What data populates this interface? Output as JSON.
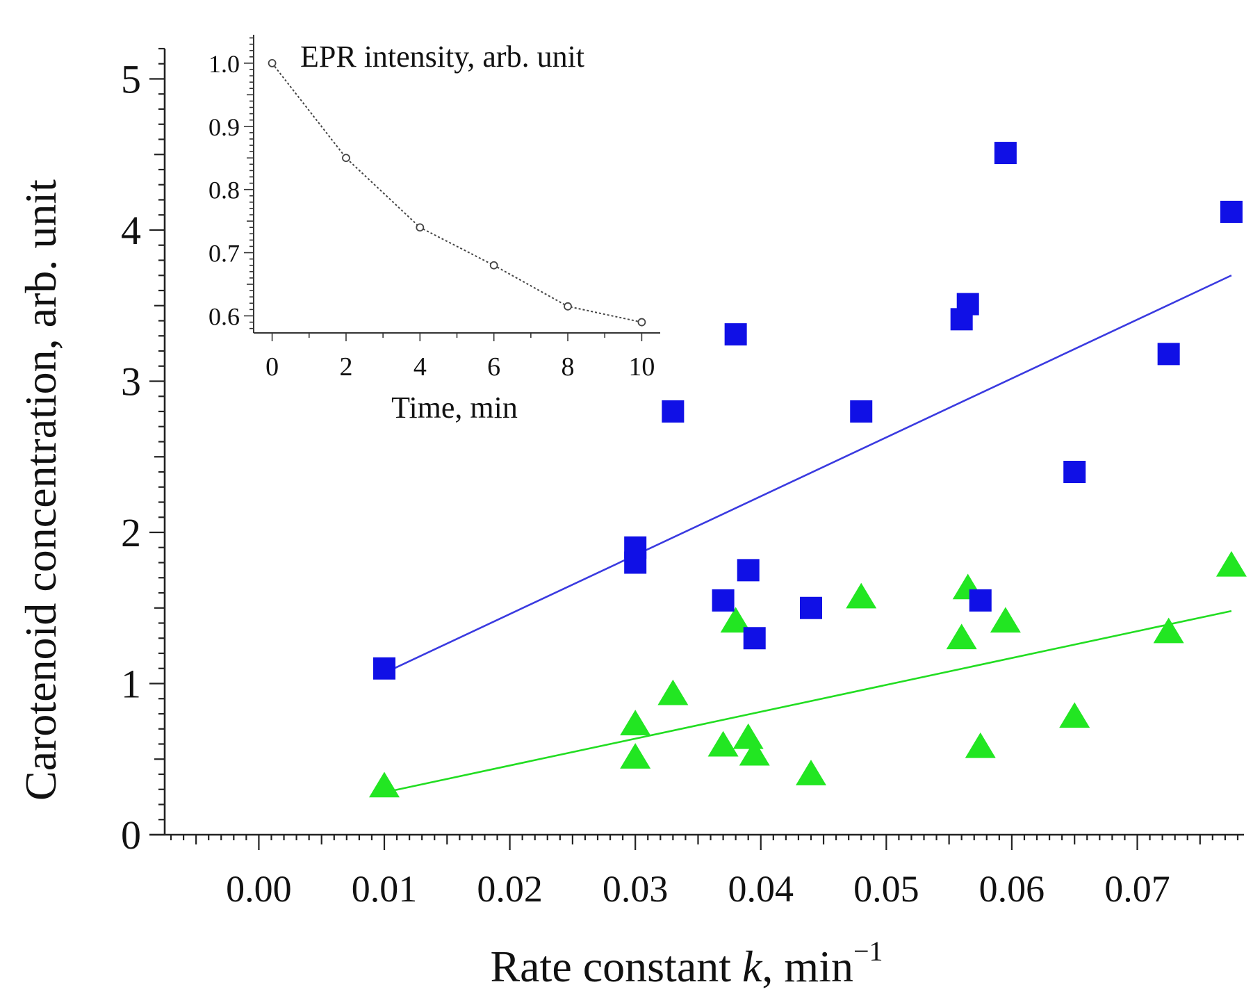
{
  "chart_data": [
    {
      "id": "main",
      "type": "scatter",
      "xlabel_prefix": "Rate constant ",
      "xlabel_var": "k",
      "xlabel_unit": ", min",
      "xlabel_exp": "−1",
      "ylabel": "Carotenoid concentration, arb. unit",
      "xlim": [
        -0.0075,
        0.0785
      ],
      "ylim": [
        0,
        5.2
      ],
      "x_ticks": [
        "0.00",
        "0.01",
        "0.02",
        "0.03",
        "0.04",
        "0.05",
        "0.06",
        "0.07"
      ],
      "x_tick_values": [
        0.0,
        0.01,
        0.02,
        0.03,
        0.04,
        0.05,
        0.06,
        0.07
      ],
      "y_ticks": [
        "0",
        "1",
        "2",
        "3",
        "4",
        "5"
      ],
      "y_tick_values": [
        0,
        1,
        2,
        3,
        4,
        5
      ],
      "grid": false,
      "series": [
        {
          "marker": "square",
          "color": "#1010e6",
          "points": [
            [
              0.01,
              1.1
            ],
            [
              0.03,
              1.9
            ],
            [
              0.03,
              1.8
            ],
            [
              0.033,
              2.8
            ],
            [
              0.037,
              1.55
            ],
            [
              0.038,
              3.31
            ],
            [
              0.039,
              1.75
            ],
            [
              0.0395,
              1.3
            ],
            [
              0.044,
              1.5
            ],
            [
              0.048,
              2.8
            ],
            [
              0.056,
              3.41
            ],
            [
              0.0565,
              3.51
            ],
            [
              0.0575,
              1.55
            ],
            [
              0.0595,
              4.51
            ],
            [
              0.065,
              2.4
            ],
            [
              0.0725,
              3.18
            ],
            [
              0.0775,
              4.12
            ]
          ],
          "trend": {
            "x": [
              0.01,
              0.0775
            ],
            "y": [
              1.07,
              3.7
            ],
            "color": "#3a3ae0"
          }
        },
        {
          "marker": "triangle",
          "color": "#22e622",
          "points": [
            [
              0.01,
              0.31
            ],
            [
              0.03,
              0.72
            ],
            [
              0.03,
              0.5
            ],
            [
              0.033,
              0.92
            ],
            [
              0.037,
              0.58
            ],
            [
              0.038,
              1.4
            ],
            [
              0.039,
              0.63
            ],
            [
              0.0395,
              0.52
            ],
            [
              0.044,
              0.39
            ],
            [
              0.048,
              1.56
            ],
            [
              0.056,
              1.29
            ],
            [
              0.0565,
              1.62
            ],
            [
              0.0575,
              0.57
            ],
            [
              0.0595,
              1.4
            ],
            [
              0.065,
              0.77
            ],
            [
              0.0725,
              1.33
            ],
            [
              0.0775,
              1.77
            ]
          ],
          "trend": {
            "x": [
              0.01,
              0.0775
            ],
            "y": [
              0.28,
              1.48
            ],
            "color": "#22dd22"
          }
        }
      ]
    },
    {
      "id": "inset",
      "type": "line",
      "title": "EPR intensity, arb. unit",
      "xlabel": "Time, min",
      "xlim": [
        -0.5,
        10.5
      ],
      "ylim": [
        0.573,
        1.045
      ],
      "x_ticks": [
        "0",
        "2",
        "4",
        "6",
        "8",
        "10"
      ],
      "x_tick_values": [
        0,
        2,
        4,
        6,
        8,
        10
      ],
      "y_ticks": [
        "1.0",
        "0.9",
        "0.8",
        "0.7",
        "0.6"
      ],
      "y_tick_values": [
        1.0,
        0.9,
        0.8,
        0.7,
        0.6
      ],
      "x": [
        0,
        2,
        4,
        6,
        8,
        10
      ],
      "y": [
        1.0,
        0.85,
        0.74,
        0.68,
        0.615,
        0.59
      ],
      "marker": "open-circle",
      "line_style": "dotted",
      "color": "#444444"
    }
  ]
}
